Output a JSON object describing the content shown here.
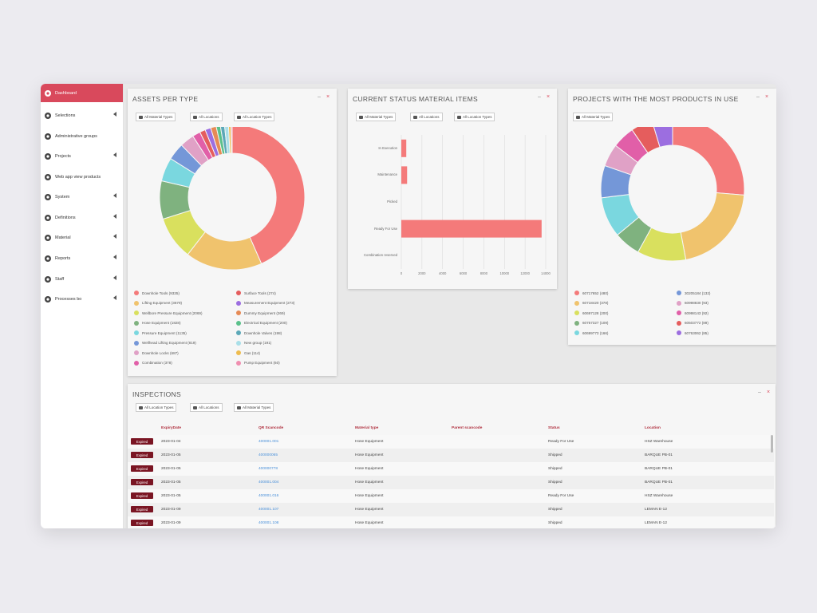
{
  "sidebar": {
    "items": [
      {
        "label": "Dashboard",
        "icon": "dashboard-icon",
        "active": true
      },
      {
        "label": "Selections",
        "icon": "search-icon",
        "has_arrow": true
      },
      {
        "label": "Administrative groups",
        "icon": "users-icon"
      },
      {
        "label": "Projects",
        "icon": "folder-icon",
        "has_arrow": true
      },
      {
        "label": "Web app view products",
        "icon": "search-icon"
      },
      {
        "label": "System",
        "icon": "gear-icon",
        "has_arrow": true
      },
      {
        "label": "Definitions",
        "icon": "list-icon",
        "has_arrow": true
      },
      {
        "label": "Material",
        "icon": "box-icon",
        "has_arrow": true
      },
      {
        "label": "Reports",
        "icon": "report-icon",
        "has_arrow": true
      },
      {
        "label": "Staff",
        "icon": "person-icon",
        "has_arrow": true
      },
      {
        "label": "Processes bo",
        "icon": "gear-icon",
        "has_arrow": true
      }
    ]
  },
  "assets_panel": {
    "title": "ASSETS PER TYPE",
    "filters": [
      "All Material Types",
      "All Locations",
      "All Location Types"
    ]
  },
  "status_panel": {
    "title": "CURRENT STATUS MATERIAL ITEMS",
    "filters": [
      "All Material Types",
      "All Locations",
      "All Location Types"
    ]
  },
  "projects_panel": {
    "title": "PROJECTS WITH THE MOST PRODUCTS IN USE",
    "filters": [
      "All Material Types"
    ]
  },
  "inspections_panel": {
    "title": "INSPECTIONS",
    "filters": [
      "All Location Types",
      "All Locations",
      "All Material Types"
    ],
    "columns": [
      "ExpiryDate",
      "QR Scancode",
      "Material type",
      "Parent scancode",
      "Status",
      "Location"
    ],
    "rows": [
      {
        "badge": "Expired",
        "date": "2023-01-04",
        "code": "400001.001",
        "type": "Hose Equipment",
        "status": "Ready For Use",
        "location": "HSZ Warehouse"
      },
      {
        "badge": "Expired",
        "date": "2023-01-05",
        "code": "400000065",
        "type": "Hose Equipment",
        "status": "Shipped",
        "location": "BARQUE PB-01"
      },
      {
        "badge": "Expired",
        "date": "2023-01-05",
        "code": "400000778",
        "type": "Hose Equipment",
        "status": "Shipped",
        "location": "BARQUE PB-01"
      },
      {
        "badge": "Expired",
        "date": "2023-01-05",
        "code": "400001.004",
        "type": "Hose Equipment",
        "status": "Shipped",
        "location": "BARQUE PB-01"
      },
      {
        "badge": "Expired",
        "date": "2023-01-05",
        "code": "400001.016",
        "type": "Hose Equipment",
        "status": "Ready For Use",
        "location": "HSZ Warehouse"
      },
      {
        "badge": "Expired",
        "date": "2023-01-09",
        "code": "400001.107",
        "type": "Hose Equipment",
        "status": "Shipped",
        "location": "LEMAN E-12"
      },
      {
        "badge": "Expired",
        "date": "2023-01-09",
        "code": "400001.108",
        "type": "Hose Equipment",
        "status": "Shipped",
        "location": "LEMAN E-12"
      }
    ]
  },
  "chart_data": [
    {
      "type": "pie",
      "title": "ASSETS PER TYPE",
      "legend": "bottom",
      "labels": [
        "Downhole Tools (9335)",
        "Lifting Equipment (3679)",
        "Wellbore Pressure Equipment (2069)",
        "Hose Equipment (1828)",
        "Pressure Equipment (1135)",
        "Wellhead Lifting Equipment (819)",
        "Downhole Locks (687)",
        "Combination (378)",
        "Surface Tools (274)",
        "Measurement Equipment (273)",
        "Dummy Equipment (269)",
        "Electrical Equipment (200)",
        "Downhole Valves (198)",
        "New group (191)",
        "Gas (114)",
        "Pump Equipment (60)"
      ],
      "values": [
        9335,
        3679,
        2069,
        1828,
        1135,
        819,
        687,
        378,
        274,
        273,
        269,
        200,
        198,
        191,
        114,
        60
      ],
      "colors": [
        "#f47a7a",
        "#f0c36d",
        "#d9e05e",
        "#7fb27f",
        "#7ad7df",
        "#7497d8",
        "#e0a1c6",
        "#e15fa8",
        "#e55d5d",
        "#9c6ee0",
        "#e68a55",
        "#5ac08a",
        "#5ca8b8",
        "#a9dfe8",
        "#eebc4e",
        "#f08fb0"
      ]
    },
    {
      "type": "bar",
      "orientation": "horizontal",
      "title": "CURRENT STATUS MATERIAL ITEMS",
      "categories": [
        "In Execution",
        "Maintenance",
        "Picked",
        "Ready For Use",
        "Combination reserved"
      ],
      "values": [
        480,
        560,
        0,
        13600,
        0
      ],
      "xlim": [
        0,
        14000
      ],
      "xticks": [
        "0",
        "2000",
        "4000",
        "6000",
        "8000",
        "10000",
        "12000",
        "14000"
      ],
      "color": "#f47a7a"
    },
    {
      "type": "pie",
      "title": "PROJECTS WITH THE MOST PRODUCTS IN USE",
      "legend": "bottom",
      "labels": [
        "60717652 (480)",
        "60718420 (378)",
        "60697128 (200)",
        "60757327 (109)",
        "60699773 (166)",
        "30205184 (132)",
        "60998830 (93)",
        "60998143 (92)",
        "60503772 (89)",
        "60763062 (85)"
      ],
      "values": [
        480,
        378,
        200,
        109,
        166,
        132,
        93,
        92,
        89,
        85
      ],
      "colors": [
        "#f47a7a",
        "#f0c36d",
        "#d9e05e",
        "#7fb27f",
        "#7ad7df",
        "#7497d8",
        "#e0a1c6",
        "#e15fa8",
        "#e55d5d",
        "#9c6ee0"
      ]
    }
  ]
}
